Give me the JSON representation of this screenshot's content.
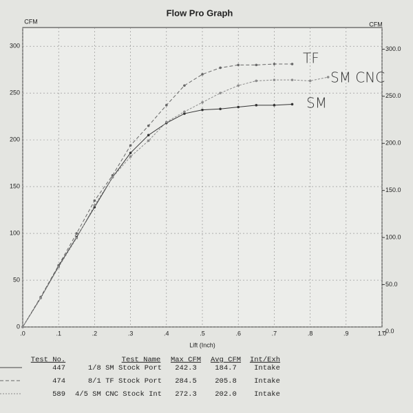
{
  "chart_data": {
    "type": "line",
    "title": "Flow Pro Graph",
    "y_label": "CFM",
    "y2_label": "CFM",
    "x_label": "Lift (Inch)",
    "x": [
      0,
      0.05,
      0.1,
      0.15,
      0.2,
      0.25,
      0.3,
      0.35,
      0.4,
      0.45,
      0.5,
      0.55,
      0.6,
      0.65,
      0.7,
      0.75,
      0.8,
      0.85
    ],
    "series": [
      {
        "name": "SM",
        "color": "#333333",
        "values": [
          0,
          31,
          65,
          96,
          128,
          160,
          186,
          205,
          218,
          228,
          232,
          233,
          235,
          237,
          237,
          238,
          null,
          null
        ]
      },
      {
        "name": "TF",
        "color": "#666666",
        "values": [
          0,
          32,
          66,
          100,
          135,
          162,
          194,
          215,
          237,
          258,
          270,
          277,
          280,
          280,
          281,
          281,
          null,
          null
        ]
      },
      {
        "name": "SM CNC",
        "color": "#8a8a8a",
        "values": [
          0,
          31,
          64,
          95,
          130,
          160,
          182,
          199,
          219,
          230,
          240,
          250,
          258,
          263,
          264,
          264,
          263,
          267
        ]
      }
    ],
    "xlim": [
      0,
      1
    ],
    "xticks": [
      {
        "value": 0,
        "label": ".0"
      },
      {
        "value": 0.1,
        "label": ".1"
      },
      {
        "value": 0.2,
        "label": ".2"
      },
      {
        "value": 0.3,
        "label": ".3"
      },
      {
        "value": 0.4,
        "label": ".4"
      },
      {
        "value": 0.5,
        "label": ".5"
      },
      {
        "value": 0.6,
        "label": ".6"
      },
      {
        "value": 0.7,
        "label": ".7"
      },
      {
        "value": 0.8,
        "label": ".8"
      },
      {
        "value": 0.9,
        "label": ".9"
      },
      {
        "value": 1,
        "label": "1.0"
      }
    ],
    "ylim": [
      0,
      320
    ],
    "yticks": [
      0,
      50,
      100,
      150,
      200,
      250,
      300
    ],
    "y2lim": [
      5,
      323
    ],
    "y2ticks": [
      {
        "value": 0,
        "label": "0.0"
      },
      {
        "value": 50,
        "label": "50.0"
      },
      {
        "value": 100,
        "label": "100.0"
      },
      {
        "value": 150,
        "label": "150.0"
      },
      {
        "value": 200,
        "label": "200.0"
      },
      {
        "value": 250,
        "label": "250.0"
      },
      {
        "value": 300,
        "label": "300.0"
      }
    ],
    "grid": true,
    "annotations": [
      "TF",
      "SM CNC",
      "SM"
    ]
  },
  "table": {
    "header": [
      "Test No.",
      "Test Name",
      "Max CFM",
      "Avg CFM",
      "Int/Exh"
    ],
    "rows": [
      [
        "447",
        "1/8 SM Stock Port",
        "242.3",
        "184.7",
        "Intake"
      ],
      [
        "474",
        "8/1 TF Stock Port",
        "284.5",
        "205.8",
        "Intake"
      ],
      [
        "589",
        "4/5 SM CNC Stock Int",
        "272.3",
        "202.0",
        "Intake"
      ]
    ]
  }
}
